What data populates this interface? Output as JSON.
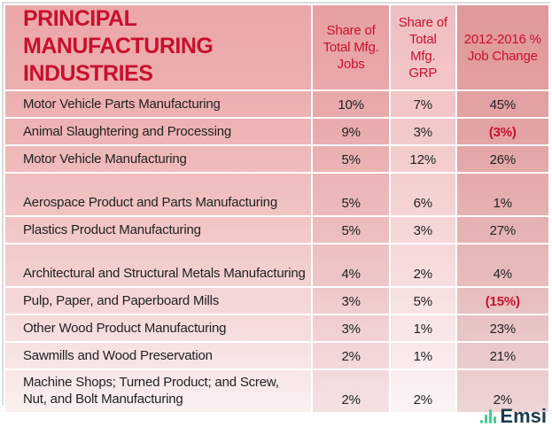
{
  "title": "PRINCIPAL MANUFACTURING INDUSTRIES",
  "columns": [
    "Share of Total Mfg. Jobs",
    "Share of Total Mfg. GRP",
    "2012-2016 % Job Change"
  ],
  "rows": [
    {
      "name": "Motor Vehicle Parts Manufacturing",
      "jobs": "10%",
      "grp": "7%",
      "change": "45%",
      "negative": false
    },
    {
      "name": "Animal Slaughtering and Processing",
      "jobs": "9%",
      "grp": "3%",
      "change": "(3%)",
      "negative": true
    },
    {
      "name": "Motor Vehicle Manufacturing",
      "jobs": "5%",
      "grp": "12%",
      "change": "26%",
      "negative": false
    },
    {
      "name": "Aerospace Product and Parts Manufacturing",
      "jobs": "5%",
      "grp": "6%",
      "change": "1%",
      "negative": false
    },
    {
      "name": "Plastics Product Manufacturing",
      "jobs": "5%",
      "grp": "3%",
      "change": "27%",
      "negative": false
    },
    {
      "name": "Architectural and Structural Metals Manufacturing",
      "jobs": "4%",
      "grp": "2%",
      "change": "4%",
      "negative": false
    },
    {
      "name": "Pulp, Paper, and Paperboard Mills",
      "jobs": "3%",
      "grp": "5%",
      "change": "(15%)",
      "negative": true
    },
    {
      "name": "Other Wood Product Manufacturing",
      "jobs": "3%",
      "grp": "1%",
      "change": "23%",
      "negative": false
    },
    {
      "name": "Sawmills and Wood Preservation",
      "jobs": "2%",
      "grp": "1%",
      "change": "21%",
      "negative": false
    },
    {
      "name": "Machine Shops; Turned Product; and Screw, Nut, and Bolt Manufacturing",
      "jobs": "2%",
      "grp": "2%",
      "change": "2%",
      "negative": false
    }
  ],
  "logo": "Emsi",
  "colors": {
    "accent": "#c8102e",
    "logo_green": "#3ecf8e",
    "logo_text": "#1e3a4c"
  }
}
